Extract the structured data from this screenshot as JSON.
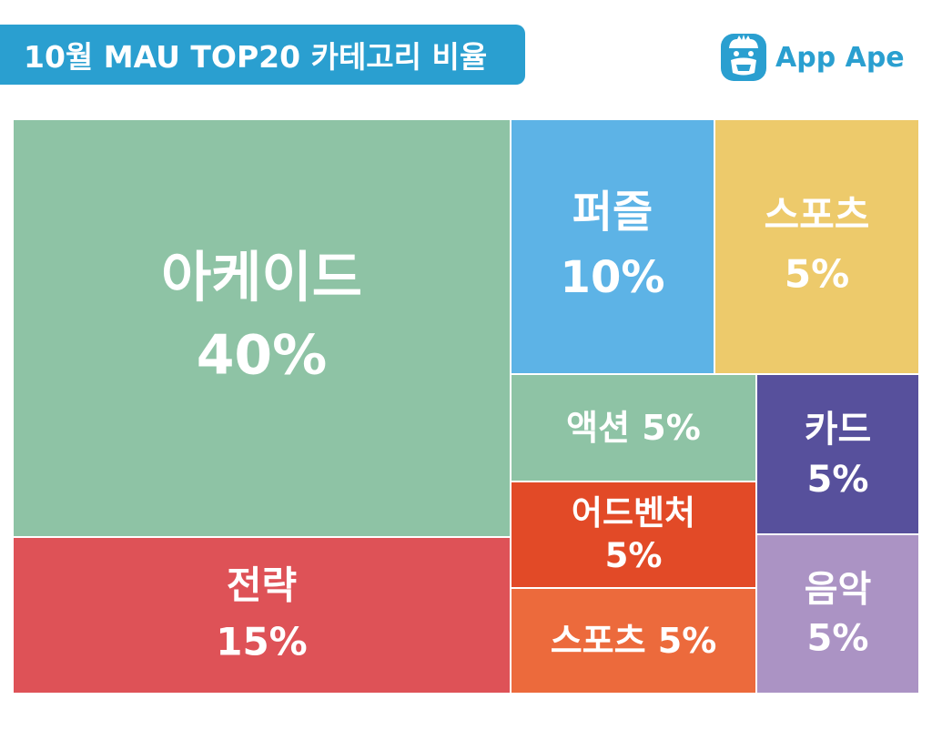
{
  "header": {
    "title": "10월 MAU TOP20 카테고리 비율",
    "logo_text": "App Ape",
    "logo_icon": "ape-face-icon"
  },
  "colors": {
    "title_bg": "#2a9fd0",
    "logo": "#2a9fd0"
  },
  "chart_data": {
    "type": "treemap",
    "title": "10월 MAU TOP20 카테고리 비율",
    "unit": "%",
    "items": [
      {
        "name": "아케이드",
        "value": 40,
        "value_label": "40%",
        "color": "#8ec3a5"
      },
      {
        "name": "전략",
        "value": 15,
        "value_label": "15%",
        "color": "#de5257"
      },
      {
        "name": "퍼즐",
        "value": 10,
        "value_label": "10%",
        "color": "#5db3e6"
      },
      {
        "name": "스포츠",
        "value": 5,
        "value_label": "5%",
        "color": "#edca6b"
      },
      {
        "name": "액션",
        "value": 5,
        "value_label": "5%",
        "color": "#8ec3a5"
      },
      {
        "name": "카드",
        "value": 5,
        "value_label": "5%",
        "color": "#57509c"
      },
      {
        "name": "어드벤처",
        "value": 5,
        "value_label": "5%",
        "color": "#e24a27"
      },
      {
        "name": "음악",
        "value": 5,
        "value_label": "5%",
        "color": "#ab93c4"
      },
      {
        "name": "스포츠",
        "value": 5,
        "value_label": "5%",
        "color": "#ec6a3c"
      }
    ]
  }
}
